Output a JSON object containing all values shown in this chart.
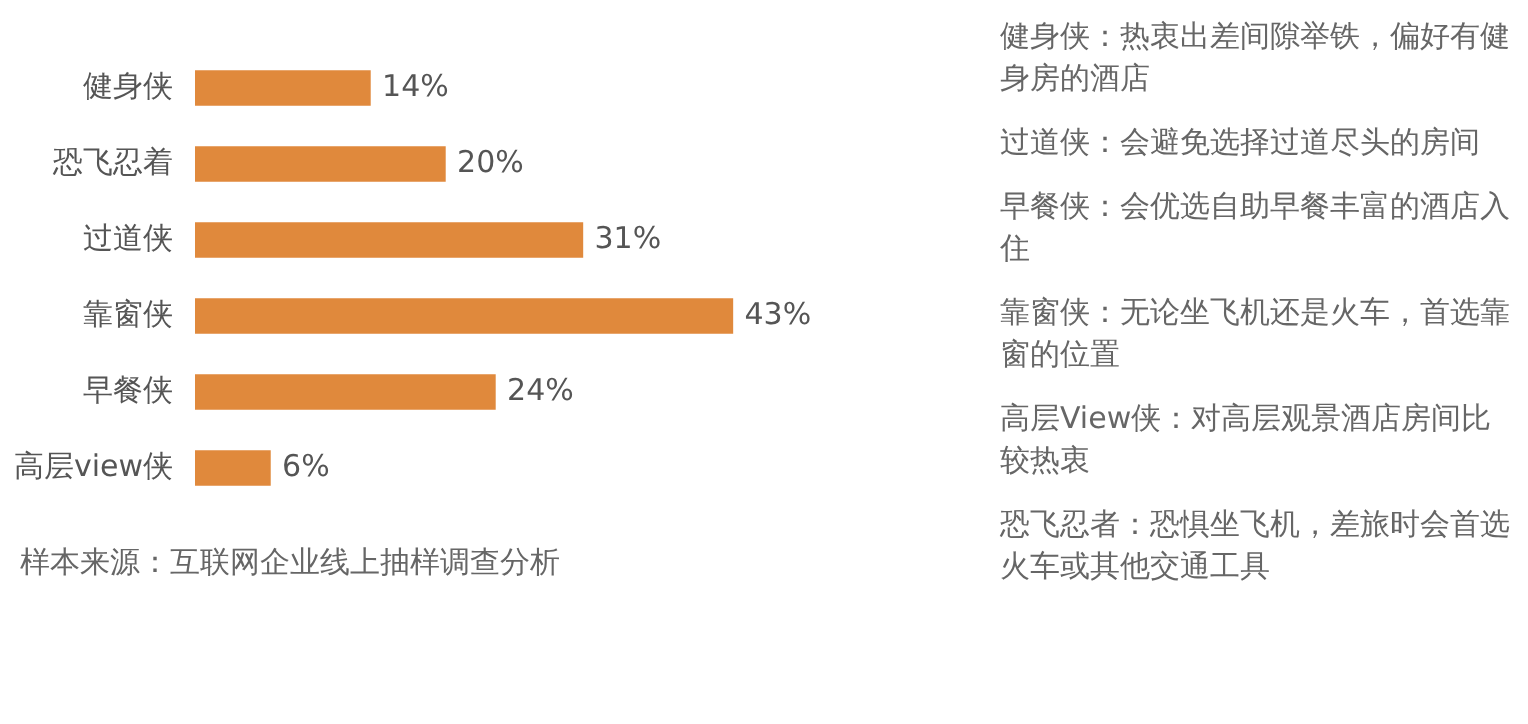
{
  "chart_data": [
    {
      "type": "bar",
      "orientation": "horizontal",
      "categories": [
        "健身侠",
        "恐飞忍着",
        "过道侠",
        "靠窗侠",
        "早餐侠",
        "高层view侠"
      ],
      "values": [
        14,
        20,
        31,
        43,
        24,
        6
      ],
      "value_labels": [
        "14%",
        "20%",
        "31%",
        "43%",
        "24%",
        "6%"
      ],
      "color": "#e0893c",
      "tick_labels": "y",
      "annotations": [
        "样本来源：互联网企业线上抽样调查分析"
      ]
    },
    {
      "type": "other",
      "annotations": [
        "健身侠：热衷出差间隙举铁，偏好有健身房的酒店",
        "过道侠：会避免选择过道尽头的房间",
        "早餐侠：会优选自助早餐丰富的酒店入住",
        "靠窗侠：无论坐飞机还是火车，首选靠窗的位置",
        "高层View侠：对高层观景酒店房间比较热衷",
        "恐飞忍者：恐惧坐飞机，差旅时会首选火车或其他交通工具"
      ]
    }
  ]
}
